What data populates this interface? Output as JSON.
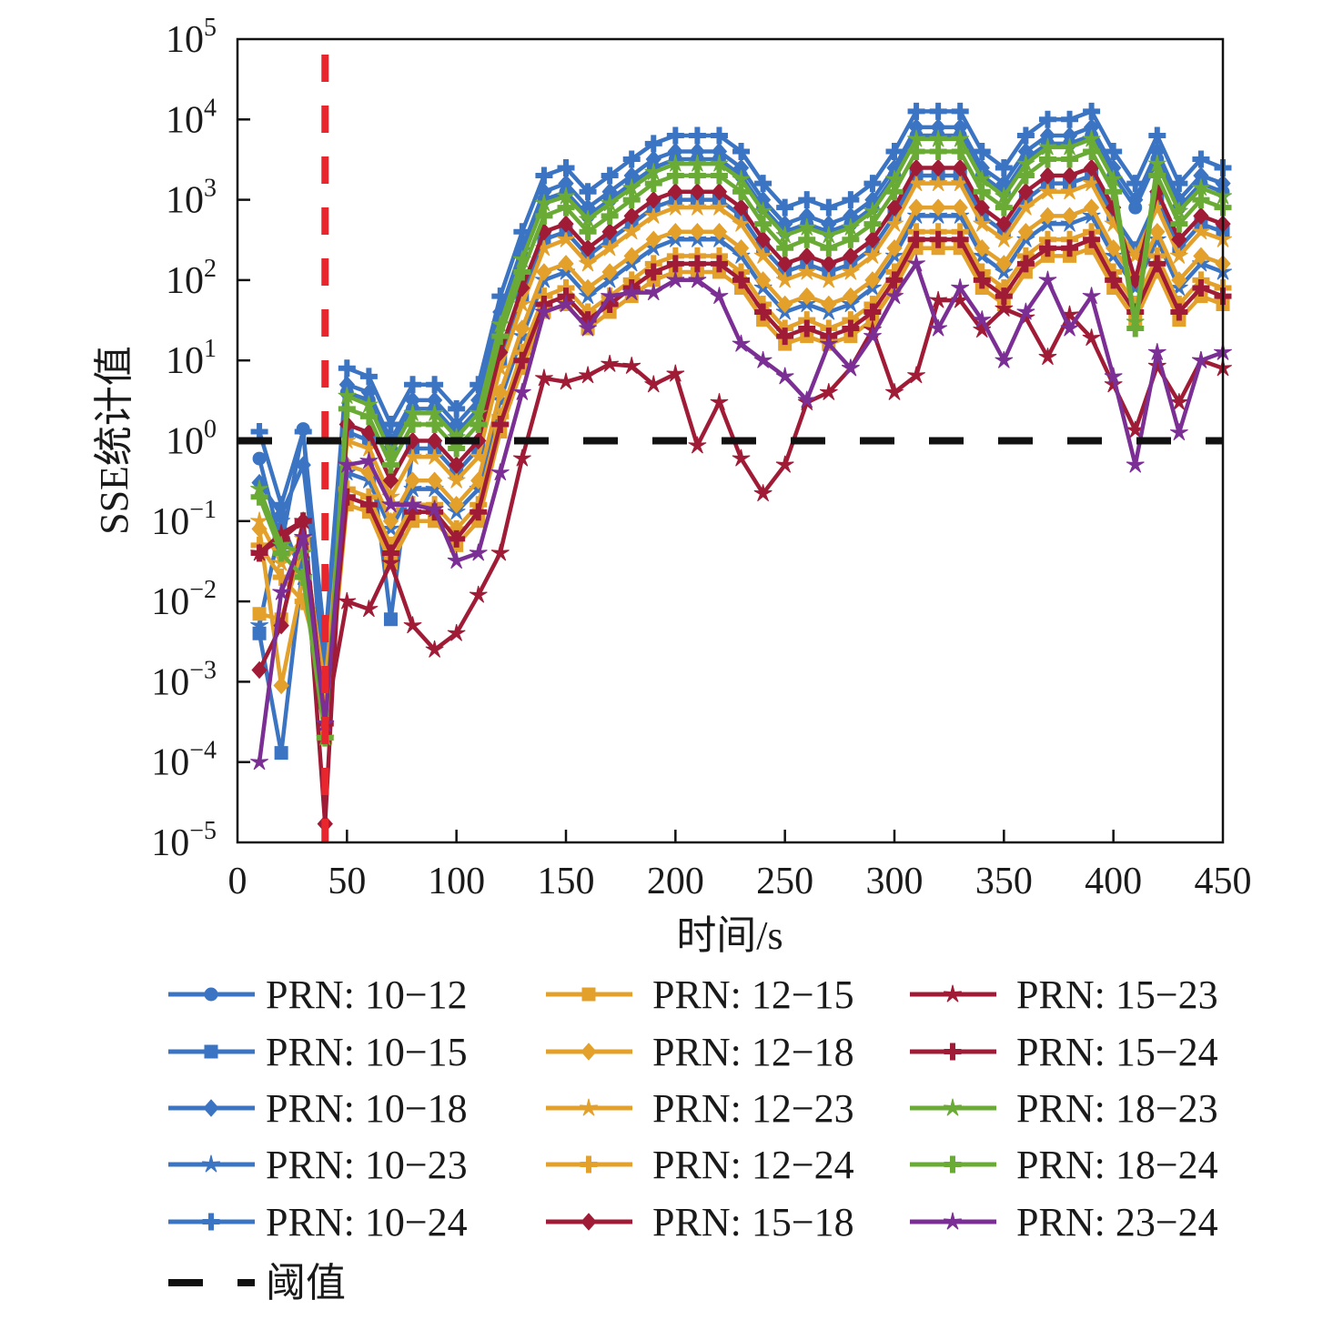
{
  "chart_data": {
    "type": "line",
    "xlabel": "时间/s",
    "ylabel": "SSE统计值",
    "xlim": [
      0,
      450
    ],
    "ylim": [
      1e-05,
      100000.0
    ],
    "yscale": "log",
    "grid": false,
    "legend_placement": "bottom",
    "xticks": [
      "0",
      "50",
      "100",
      "150",
      "200",
      "250",
      "300",
      "350",
      "400",
      "450"
    ],
    "yticks": [
      {
        "base": "10",
        "exp": "−5"
      },
      {
        "base": "10",
        "exp": "−4"
      },
      {
        "base": "10",
        "exp": "−3"
      },
      {
        "base": "10",
        "exp": "−2"
      },
      {
        "base": "10",
        "exp": "−1"
      },
      {
        "base": "10",
        "exp": "0"
      },
      {
        "base": "10",
        "exp": "1"
      },
      {
        "base": "10",
        "exp": "2"
      },
      {
        "base": "10",
        "exp": "3"
      },
      {
        "base": "10",
        "exp": "4"
      },
      {
        "base": "10",
        "exp": "5"
      }
    ],
    "x": [
      10,
      20,
      30,
      40,
      50,
      60,
      70,
      80,
      90,
      100,
      110,
      120,
      130,
      140,
      150,
      160,
      170,
      180,
      190,
      200,
      210,
      220,
      230,
      240,
      250,
      260,
      270,
      280,
      290,
      300,
      310,
      320,
      330,
      340,
      350,
      360,
      370,
      380,
      390,
      400,
      410,
      420,
      430,
      440,
      450
    ],
    "threshold": {
      "name": "阈值",
      "value": 1,
      "color": "#111111"
    },
    "event_line": {
      "x": 40,
      "color": "#e8262e"
    },
    "series": [
      {
        "name": "PRN: 10−12",
        "color": "#3b74c2",
        "marker": "circle",
        "values": [
          0.6,
          0.05,
          1.4,
          0.0005,
          4,
          3.2,
          0.8,
          2.5,
          2.5,
          1.25,
          2.5,
          32,
          200,
          1000,
          1250,
          630,
          1000,
          1600,
          2500,
          3200,
          3200,
          3200,
          2000,
          800,
          400,
          500,
          400,
          500,
          800,
          2000,
          6300,
          6300,
          6300,
          2000,
          1250,
          3200,
          5000,
          5000,
          6300,
          2000,
          800,
          3200,
          800,
          1600,
          1250
        ]
      },
      {
        "name": "PRN: 10−15",
        "color": "#3b74c2",
        "marker": "square",
        "values": [
          0.004,
          0.00013,
          0.03,
          0.001,
          1.3,
          1,
          0.006,
          0.8,
          0.8,
          0.4,
          0.8,
          10,
          63,
          320,
          400,
          200,
          320,
          500,
          800,
          1000,
          1000,
          1000,
          630,
          250,
          126,
          158,
          126,
          158,
          250,
          630,
          2000,
          2000,
          2000,
          630,
          400,
          1000,
          1600,
          1600,
          2000,
          630,
          250,
          1000,
          250,
          500,
          400
        ]
      },
      {
        "name": "PRN: 10−18",
        "color": "#3b74c2",
        "marker": "diamond",
        "values": [
          0.3,
          0.12,
          0.5,
          0.002,
          5,
          4,
          1,
          3.2,
          3.2,
          1.6,
          3.2,
          40,
          250,
          1260,
          1600,
          800,
          1260,
          2000,
          3200,
          4000,
          4000,
          4000,
          2500,
          1000,
          500,
          630,
          500,
          630,
          1000,
          2500,
          8000,
          8000,
          8000,
          2500,
          1600,
          4000,
          6300,
          6300,
          8000,
          2500,
          1000,
          4000,
          1000,
          2000,
          1600
        ]
      },
      {
        "name": "PRN: 10−23",
        "color": "#3b74c2",
        "marker": "star",
        "values": [
          0.005,
          0.1,
          0.02,
          0.0003,
          0.4,
          0.32,
          0.08,
          0.25,
          0.25,
          0.13,
          0.25,
          3.2,
          20,
          100,
          126,
          63,
          100,
          160,
          250,
          320,
          320,
          320,
          200,
          80,
          40,
          50,
          40,
          50,
          80,
          200,
          630,
          630,
          630,
          200,
          126,
          320,
          500,
          500,
          630,
          200,
          80,
          320,
          80,
          160,
          126
        ]
      },
      {
        "name": "PRN: 10−24",
        "color": "#3b74c2",
        "marker": "plus",
        "values": [
          1.3,
          0.16,
          1.3,
          0.003,
          8,
          6.3,
          1.6,
          5,
          5,
          2.5,
          5,
          63,
          400,
          2000,
          2500,
          1260,
          2000,
          3200,
          5000,
          6300,
          6300,
          6300,
          4000,
          1600,
          800,
          1000,
          800,
          1000,
          1600,
          4000,
          12600,
          12600,
          12600,
          4000,
          2500,
          6300,
          10000,
          10000,
          12600,
          4000,
          1600,
          6300,
          1600,
          3200,
          2500
        ]
      },
      {
        "name": "PRN: 12−15",
        "color": "#e3a02b",
        "marker": "square",
        "values": [
          0.007,
          0.006,
          0.05,
          0.0002,
          0.16,
          0.13,
          0.03,
          0.1,
          0.1,
          0.05,
          0.1,
          1.3,
          8,
          40,
          50,
          25,
          40,
          63,
          100,
          126,
          126,
          126,
          80,
          32,
          16,
          20,
          16,
          20,
          32,
          80,
          250,
          250,
          250,
          80,
          50,
          126,
          200,
          200,
          250,
          80,
          32,
          126,
          32,
          63,
          50
        ]
      },
      {
        "name": "PRN: 12−18",
        "color": "#e3a02b",
        "marker": "diamond",
        "values": [
          0.08,
          0.0009,
          0.02,
          0.0005,
          0.5,
          0.4,
          0.1,
          0.32,
          0.32,
          0.16,
          0.32,
          4,
          25,
          126,
          160,
          80,
          126,
          200,
          320,
          400,
          400,
          400,
          250,
          100,
          50,
          63,
          50,
          63,
          100,
          250,
          800,
          800,
          800,
          250,
          160,
          400,
          630,
          630,
          800,
          250,
          100,
          400,
          100,
          200,
          160
        ]
      },
      {
        "name": "PRN: 12−23",
        "color": "#e3a02b",
        "marker": "star",
        "values": [
          0.1,
          0.03,
          0.06,
          0.0008,
          1,
          0.8,
          0.2,
          0.63,
          0.63,
          0.32,
          0.63,
          8,
          50,
          250,
          320,
          160,
          250,
          400,
          630,
          800,
          800,
          800,
          500,
          200,
          100,
          126,
          100,
          126,
          200,
          500,
          1600,
          1600,
          1600,
          500,
          320,
          800,
          1260,
          1260,
          1600,
          500,
          200,
          800,
          200,
          400,
          320
        ]
      },
      {
        "name": "PRN: 12−24",
        "color": "#e3a02b",
        "marker": "plus",
        "values": [
          0.05,
          0.02,
          0.01,
          0.001,
          0.25,
          0.2,
          0.05,
          0.16,
          0.16,
          0.08,
          0.16,
          2,
          12.6,
          63,
          80,
          40,
          63,
          100,
          160,
          200,
          200,
          200,
          126,
          50,
          25,
          32,
          25,
          32,
          50,
          126,
          400,
          400,
          400,
          126,
          80,
          200,
          320,
          320,
          400,
          126,
          50,
          200,
          50,
          100,
          80
        ]
      },
      {
        "name": "PRN: 15−18",
        "color": "#a01c36",
        "marker": "diamond",
        "values": [
          0.0014,
          0.005,
          0.1,
          1.7e-05,
          1.6,
          1.26,
          0.32,
          1,
          1,
          0.5,
          1,
          12.6,
          80,
          400,
          500,
          250,
          400,
          630,
          1000,
          1260,
          1260,
          1260,
          800,
          320,
          160,
          200,
          160,
          200,
          320,
          800,
          2500,
          2500,
          2500,
          800,
          500,
          1260,
          2000,
          2000,
          2500,
          800,
          100,
          1260,
          320,
          630,
          500
        ]
      },
      {
        "name": "PRN: 15−23",
        "color": "#a01c36",
        "marker": "star",
        "values": [
          0.04,
          0.07,
          0.1,
          0.0003,
          0.01,
          0.008,
          0.03,
          0.005,
          0.0025,
          0.004,
          0.012,
          0.04,
          0.6,
          6,
          5.4,
          6.5,
          9,
          8.5,
          5,
          6.8,
          0.87,
          3,
          0.6,
          0.22,
          0.5,
          3,
          4,
          8,
          24,
          4,
          6.5,
          56,
          56,
          24,
          44,
          34,
          11,
          37,
          19,
          5,
          1.35,
          8.5,
          3,
          10,
          8
        ]
      },
      {
        "name": "PRN: 15−24",
        "color": "#a01c36",
        "marker": "plus",
        "values": [
          0.04,
          0.06,
          0.1,
          0.0003,
          0.2,
          0.16,
          0.04,
          0.13,
          0.13,
          0.06,
          0.13,
          1.6,
          10,
          50,
          63,
          32,
          50,
          80,
          126,
          160,
          160,
          160,
          100,
          40,
          20,
          25,
          20,
          25,
          40,
          100,
          320,
          320,
          320,
          100,
          63,
          160,
          250,
          250,
          320,
          100,
          40,
          160,
          40,
          80,
          63
        ]
      },
      {
        "name": "PRN: 18−23",
        "color": "#6aab36",
        "marker": "star",
        "values": [
          0.25,
          0.05,
          0.04,
          0.0002,
          3.6,
          2.8,
          0.7,
          2.2,
          2.2,
          1.1,
          2.2,
          28,
          180,
          900,
          1100,
          570,
          900,
          1400,
          2200,
          2800,
          2800,
          2800,
          1800,
          720,
          360,
          450,
          360,
          450,
          720,
          1800,
          5700,
          5700,
          5700,
          1800,
          1100,
          2800,
          4500,
          4500,
          5700,
          1800,
          30,
          2800,
          720,
          1400,
          1100
        ]
      },
      {
        "name": "PRN: 18−24",
        "color": "#6aab36",
        "marker": "plus",
        "values": [
          0.2,
          0.04,
          0.02,
          0.0002,
          2.5,
          2,
          0.5,
          1.6,
          1.6,
          0.8,
          1.6,
          20,
          126,
          630,
          800,
          400,
          630,
          1000,
          1600,
          2000,
          2000,
          2000,
          1260,
          500,
          250,
          320,
          250,
          320,
          500,
          1260,
          4000,
          4000,
          4000,
          1260,
          800,
          2000,
          3200,
          3200,
          4000,
          1260,
          25,
          2000,
          500,
          1000,
          800
        ]
      },
      {
        "name": "PRN: 23−24",
        "color": "#7b2f95",
        "marker": "star",
        "values": [
          0.0001,
          0.013,
          0.063,
          0.0003,
          0.5,
          0.56,
          0.16,
          0.16,
          0.14,
          0.032,
          0.04,
          0.4,
          4,
          40,
          50,
          25,
          63,
          70,
          70,
          100,
          100,
          63,
          16,
          10,
          6.3,
          3.2,
          16,
          8,
          20,
          63,
          160,
          25,
          80,
          32,
          10,
          40,
          100,
          25,
          63,
          6.3,
          0.5,
          12.6,
          1.26,
          10,
          12.6
        ]
      }
    ]
  }
}
